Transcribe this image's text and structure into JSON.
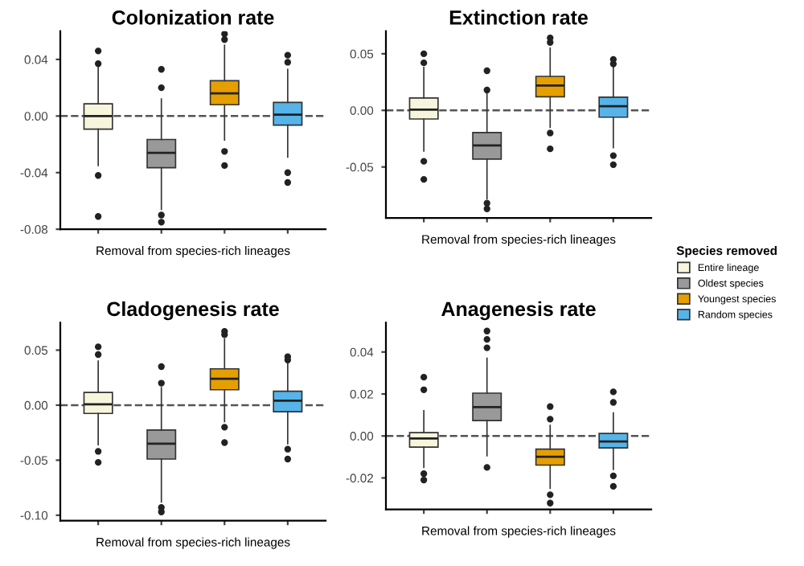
{
  "chart_data": [
    {
      "type": "box",
      "title": "Colonization rate",
      "xlabel": "Removal from species-rich lineages",
      "categories": [
        null,
        null,
        null,
        null
      ],
      "ylim": [
        -0.08,
        0.06
      ],
      "yticks": [
        {
          "value": -0.08,
          "label": "-0.08"
        },
        {
          "value": -0.04,
          "label": "-0.04"
        },
        {
          "value": 0.0,
          "label": "0.00"
        },
        {
          "value": 0.04,
          "label": "0.04"
        }
      ],
      "grid": false,
      "legend": false,
      "ref_lines": [
        {
          "axis": "y",
          "value": 0,
          "label": null,
          "color": "#555555",
          "line_style": "dashed"
        }
      ],
      "series": [
        {
          "color": "#f7f5dc",
          "boxes": [
            {
              "low": -0.035,
              "q1": -0.0093,
              "median": 0.0,
              "q3": 0.0086,
              "high": 0.035,
              "outliers": [
                -0.071,
                -0.042,
                0.037,
                0.046
              ]
            },
            null,
            null,
            null
          ]
        },
        {
          "color": "#999999",
          "boxes": [
            null,
            {
              "low": -0.066,
              "q1": -0.0365,
              "median": -0.026,
              "q3": -0.0166,
              "high": 0.012,
              "outliers": [
                -0.075,
                -0.07,
                0.02,
                0.033
              ]
            },
            null,
            null
          ]
        },
        {
          "color": "#e69f00",
          "boxes": [
            null,
            null,
            {
              "low": -0.017,
              "q1": 0.008,
              "median": 0.016,
              "q3": 0.025,
              "high": 0.05,
              "outliers": [
                -0.035,
                -0.025,
                0.054,
                0.058
              ]
            },
            null
          ]
        },
        {
          "color": "#56b4e9",
          "boxes": [
            null,
            null,
            null,
            {
              "low": -0.029,
              "q1": -0.0064,
              "median": 0.001,
              "q3": 0.0096,
              "high": 0.033,
              "outliers": [
                -0.047,
                -0.04,
                0.038,
                0.043
              ]
            }
          ]
        }
      ]
    },
    {
      "type": "box",
      "title": "Cladogenesis rate",
      "xlabel": "Removal from species-rich lineages",
      "categories": [
        null,
        null,
        null,
        null
      ],
      "ylim": [
        -0.105,
        0.075
      ],
      "yticks": [
        {
          "value": -0.1,
          "label": "-0.10"
        },
        {
          "value": -0.05,
          "label": "-0.05"
        },
        {
          "value": 0.0,
          "label": "0.00"
        },
        {
          "value": 0.05,
          "label": "0.05"
        }
      ],
      "grid": false,
      "legend": false,
      "ref_lines": [
        {
          "axis": "y",
          "value": 0,
          "label": null,
          "color": "#555555",
          "line_style": "dashed"
        }
      ],
      "series": [
        {
          "color": "#f7f5dc",
          "boxes": [
            {
              "low": -0.036,
              "q1": -0.0075,
              "median": 0.0008,
              "q3": 0.0115,
              "high": 0.04,
              "outliers": [
                -0.052,
                -0.042,
                0.046,
                0.053
              ]
            },
            null,
            null,
            null
          ]
        },
        {
          "color": "#999999",
          "boxes": [
            null,
            {
              "low": -0.088,
              "q1": -0.049,
              "median": -0.035,
              "q3": -0.0226,
              "high": 0.016,
              "outliers": [
                -0.097,
                -0.093,
                0.02,
                0.035
              ]
            },
            null,
            null
          ]
        },
        {
          "color": "#e69f00",
          "boxes": [
            null,
            null,
            {
              "low": -0.015,
              "q1": 0.014,
              "median": 0.024,
              "q3": 0.033,
              "high": 0.06,
              "outliers": [
                -0.034,
                -0.02,
                0.064,
                0.067
              ]
            },
            null
          ]
        },
        {
          "color": "#56b4e9",
          "boxes": [
            null,
            null,
            null,
            {
              "low": -0.035,
              "q1": -0.006,
              "median": 0.004,
              "q3": 0.0127,
              "high": 0.038,
              "outliers": [
                -0.049,
                -0.04,
                0.041,
                0.044
              ]
            }
          ]
        }
      ]
    },
    {
      "type": "box",
      "title": "Extinction rate",
      "xlabel": "Removal from species-rich lineages",
      "categories": [
        null,
        null,
        null,
        null
      ],
      "ylim": [
        -0.095,
        0.07
      ],
      "yticks": [
        {
          "value": -0.05,
          "label": "-0.05"
        },
        {
          "value": 0.0,
          "label": "0.00"
        },
        {
          "value": 0.05,
          "label": "0.05"
        }
      ],
      "grid": false,
      "legend": "right",
      "legend_title": "Species removed",
      "ref_lines": [
        {
          "axis": "y",
          "value": 0,
          "label": null,
          "color": "#555555",
          "line_style": "dashed"
        }
      ],
      "series": [
        {
          "name": "Entire lineage",
          "color": "#f7f5dc",
          "boxes": [
            {
              "low": -0.036,
              "q1": -0.0076,
              "median": 0.0007,
              "q3": 0.011,
              "high": 0.038,
              "outliers": [
                -0.061,
                -0.045,
                0.042,
                0.05
              ]
            },
            null,
            null,
            null
          ]
        },
        {
          "name": "Oldest species",
          "color": "#999999",
          "boxes": [
            null,
            {
              "low": -0.078,
              "q1": -0.043,
              "median": -0.031,
              "q3": -0.0196,
              "high": 0.015,
              "outliers": [
                -0.087,
                -0.082,
                0.018,
                0.035
              ]
            },
            null,
            null
          ]
        },
        {
          "name": "Youngest species",
          "color": "#e69f00",
          "boxes": [
            null,
            null,
            {
              "low": -0.015,
              "q1": 0.012,
              "median": 0.022,
              "q3": 0.03,
              "high": 0.055,
              "outliers": [
                -0.034,
                -0.02,
                0.06,
                0.064
              ]
            },
            null
          ]
        },
        {
          "name": "Random species",
          "color": "#56b4e9",
          "boxes": [
            null,
            null,
            null,
            {
              "low": -0.033,
              "q1": -0.006,
              "median": 0.0036,
              "q3": 0.0116,
              "high": 0.038,
              "outliers": [
                -0.048,
                -0.04,
                0.041,
                0.045
              ]
            }
          ]
        }
      ]
    },
    {
      "type": "box",
      "title": "Anagenesis rate",
      "xlabel": "Removal from species-rich lineages",
      "categories": [
        null,
        null,
        null,
        null
      ],
      "ylim": [
        -0.035,
        0.054
      ],
      "yticks": [
        {
          "value": -0.02,
          "label": "-0.02"
        },
        {
          "value": 0.0,
          "label": "0.00"
        },
        {
          "value": 0.02,
          "label": "0.02"
        },
        {
          "value": 0.04,
          "label": "0.04"
        }
      ],
      "grid": false,
      "legend": false,
      "ref_lines": [
        {
          "axis": "y",
          "value": 0,
          "label": null,
          "color": "#555555",
          "line_style": "dashed"
        }
      ],
      "series": [
        {
          "color": "#f7f5dc",
          "boxes": [
            {
              "low": -0.015,
              "q1": -0.0053,
              "median": -0.0012,
              "q3": 0.0016,
              "high": 0.012,
              "outliers": [
                -0.021,
                -0.018,
                0.022,
                0.028
              ]
            },
            null,
            null,
            null
          ]
        },
        {
          "color": "#999999",
          "boxes": [
            null,
            {
              "low": -0.0095,
              "q1": 0.0073,
              "median": 0.0137,
              "q3": 0.0204,
              "high": 0.037,
              "outliers": [
                -0.015,
                0.042,
                0.046,
                0.05
              ]
            },
            null,
            null
          ]
        },
        {
          "color": "#e69f00",
          "boxes": [
            null,
            null,
            {
              "low": -0.025,
              "q1": -0.0139,
              "median": -0.0099,
              "q3": -0.0063,
              "high": 0.005,
              "outliers": [
                -0.032,
                -0.028,
                0.008,
                0.014
              ]
            },
            null
          ]
        },
        {
          "color": "#56b4e9",
          "boxes": [
            null,
            null,
            null,
            {
              "low": -0.016,
              "q1": -0.0057,
              "median": -0.0026,
              "q3": 0.0012,
              "high": 0.011,
              "outliers": [
                -0.024,
                -0.019,
                0.016,
                0.021
              ]
            }
          ]
        }
      ]
    }
  ]
}
